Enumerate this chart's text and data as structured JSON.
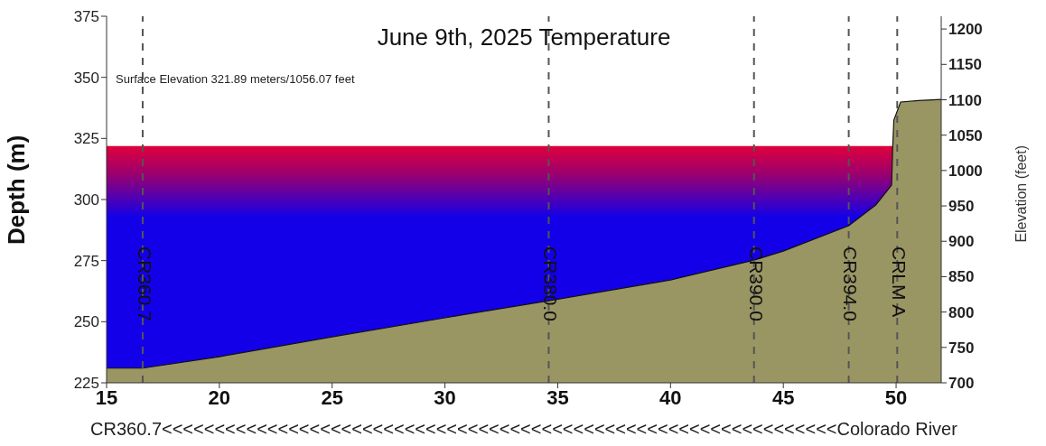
{
  "chart_data": {
    "type": "area",
    "title": "June 9th, 2025 Temperature",
    "xlabel": "CR360.7<<<<<<<<<<<<<<<<<<<<<<<<<<<<<<<<<<<<<<<<<<<<<<<<<<<<<<<<<<<<<<<<Colorado River",
    "ylabel": "Depth (m)",
    "y2label": "Elevation (feet)",
    "annotations": [
      "Surface Elevation 321.89 meters/1056.07 feet"
    ],
    "xlim": [
      15,
      52
    ],
    "xticks": [
      15,
      20,
      25,
      30,
      35,
      40,
      45,
      50
    ],
    "ylim": [
      225,
      375
    ],
    "yticks": [
      225,
      250,
      275,
      300,
      325,
      350,
      375
    ],
    "y2lim": [
      700,
      1218
    ],
    "y2ticks": [
      700,
      750,
      800,
      850,
      900,
      950,
      1000,
      1050,
      1100,
      1150,
      1200
    ],
    "series": [
      {
        "color": "#1400e8",
        "x": [
          15,
          49.85
        ],
        "values": [
          321.89,
          321.89
        ]
      },
      {
        "color": "#9a9664",
        "x": [
          15,
          16.6,
          20,
          25,
          30,
          34.6,
          40,
          43.7,
          45,
          47.9,
          49.1,
          49.8,
          49.85,
          49.9,
          50.2,
          51,
          52
        ],
        "values": [
          231,
          231,
          235.7,
          243.8,
          251.6,
          258.6,
          267.1,
          275.2,
          278.9,
          289.3,
          297.8,
          305.9,
          321.4,
          332.5,
          339.9,
          340.5,
          341
        ]
      }
    ],
    "ref_lines": [
      {
        "axis": "x",
        "value": 16.6,
        "label": "CR360.7",
        "color": "#555555",
        "line_style": "dashed"
      },
      {
        "axis": "x",
        "value": 34.6,
        "label": "CR380.0",
        "color": "#555555",
        "line_style": "dashed"
      },
      {
        "axis": "x",
        "value": 43.7,
        "label": "CR390.0",
        "color": "#555555",
        "line_style": "dashed"
      },
      {
        "axis": "x",
        "value": 47.9,
        "label": "CR394.0",
        "color": "#555555",
        "line_style": "dashed"
      },
      {
        "axis": "x",
        "value": 50.05,
        "label": "CRLM A",
        "color": "#555555",
        "line_style": "dashed"
      }
    ]
  }
}
